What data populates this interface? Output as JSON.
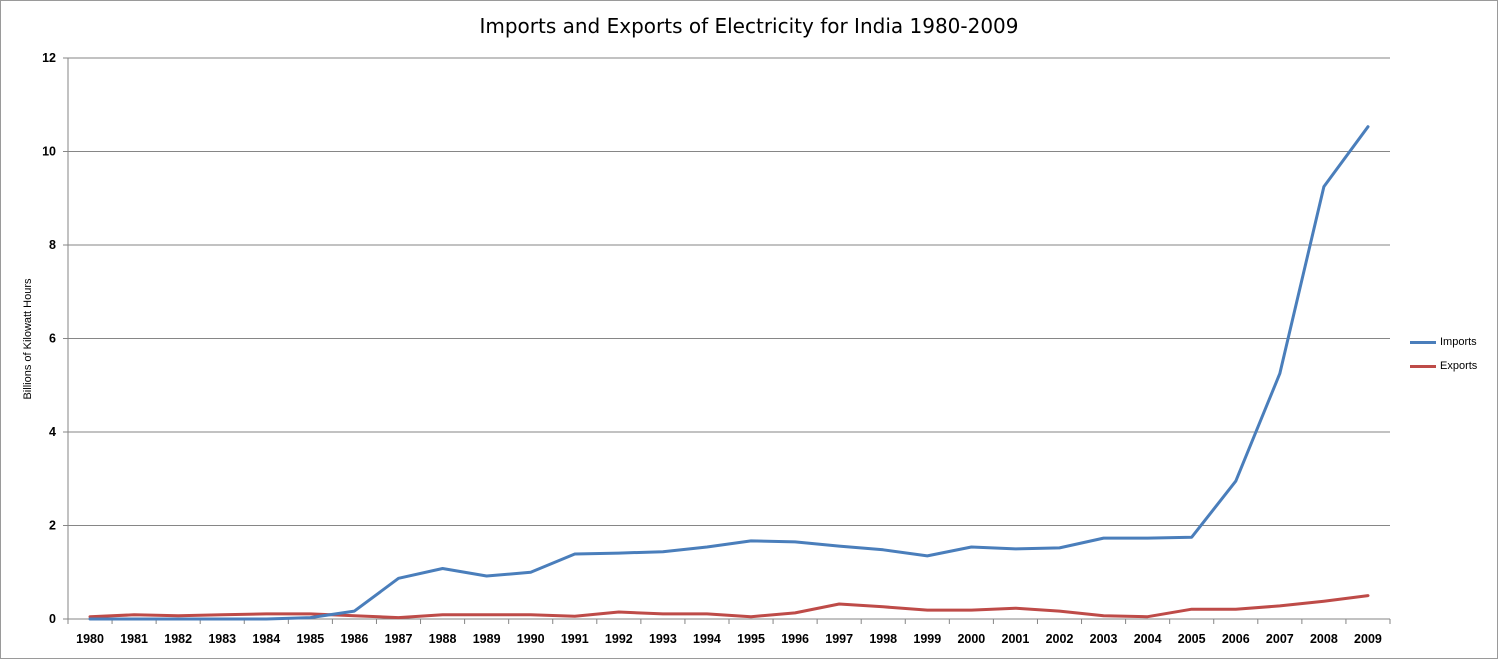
{
  "chart_data": {
    "type": "line",
    "title": "Imports and Exports of Electricity for India 1980-2009",
    "xlabel": "",
    "ylabel": "Billions of Kilowatt Hours",
    "ylim": [
      0,
      12
    ],
    "yticks": [
      "0",
      "2",
      "4",
      "6",
      "8",
      "10",
      "12"
    ],
    "categories": [
      "1980",
      "1981",
      "1982",
      "1983",
      "1984",
      "1985",
      "1986",
      "1987",
      "1988",
      "1989",
      "1990",
      "1991",
      "1992",
      "1993",
      "1994",
      "1995",
      "1996",
      "1997",
      "1998",
      "1999",
      "2000",
      "2001",
      "2002",
      "2003",
      "2004",
      "2005",
      "2006",
      "2007",
      "2008",
      "2009"
    ],
    "grid": "horizontal",
    "legend_position": "right",
    "series": [
      {
        "name": "Imports",
        "color": "#4A7EBB",
        "values": [
          0.0,
          0.0,
          0.0,
          0.0,
          0.0,
          0.03,
          0.17,
          0.87,
          1.08,
          0.92,
          1.0,
          1.39,
          1.41,
          1.44,
          1.54,
          1.67,
          1.65,
          1.56,
          1.48,
          1.35,
          1.54,
          1.5,
          1.52,
          1.73,
          1.73,
          1.75,
          2.95,
          5.25,
          9.25,
          10.53
        ]
      },
      {
        "name": "Exports",
        "color": "#BE4B48",
        "values": [
          0.05,
          0.09,
          0.07,
          0.09,
          0.11,
          0.11,
          0.07,
          0.03,
          0.09,
          0.09,
          0.09,
          0.06,
          0.15,
          0.11,
          0.11,
          0.05,
          0.13,
          0.32,
          0.26,
          0.19,
          0.19,
          0.23,
          0.17,
          0.07,
          0.05,
          0.21,
          0.21,
          0.28,
          0.38,
          0.5
        ]
      }
    ]
  }
}
